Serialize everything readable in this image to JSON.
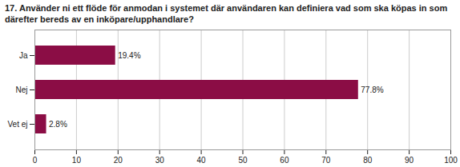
{
  "chart_data": {
    "type": "bar",
    "orientation": "horizontal",
    "title": "17. Använder ni ett flöde för anmodan i systemet där användaren kan definiera vad som ska köpas in som därefter bereds av en inköpare/upphandlare?",
    "categories": [
      "Ja",
      "Nej",
      "Vet ej"
    ],
    "values": [
      19.4,
      77.8,
      2.8
    ],
    "value_labels": [
      "19.4%",
      "77.8%",
      "2.8%"
    ],
    "data_labels": true,
    "color": "#8b0d45",
    "xlim": [
      0,
      100
    ],
    "xticks": [
      0,
      10,
      20,
      30,
      40,
      50,
      60,
      70,
      80,
      90,
      100
    ],
    "grid": true
  }
}
